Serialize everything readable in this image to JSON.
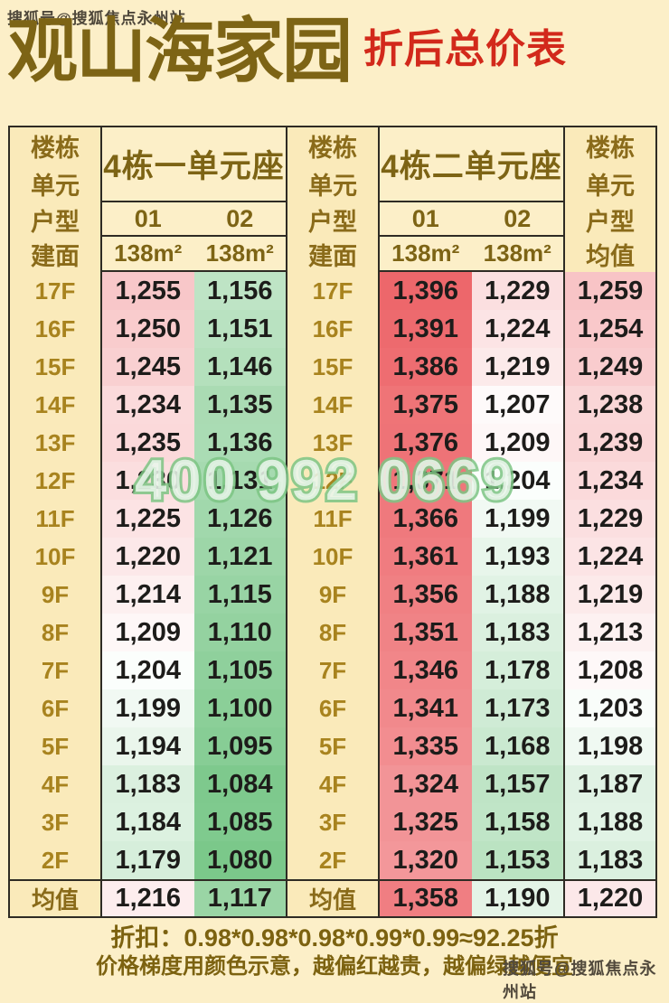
{
  "header": {
    "title": "观山海家园",
    "subtitle": "折后总价表"
  },
  "watermarks": {
    "top": "搜狐号@搜狐焦点永州站",
    "bottom": "搜狐号@搜狐焦点永州站",
    "phone": "400 992 0669"
  },
  "table": {
    "label_columns": {
      "left": [
        "楼栋",
        "单元",
        "户型",
        "建面"
      ],
      "middle": [
        "楼栋",
        "单元",
        "户型",
        "建面"
      ],
      "right": [
        "楼栋",
        "单元",
        "户型",
        "均值"
      ]
    },
    "blocks": [
      {
        "title": "4栋一单元座",
        "units": [
          "01",
          "02"
        ],
        "areas": [
          "138m²",
          "138m²"
        ]
      },
      {
        "title": "4栋二单元座",
        "units": [
          "01",
          "02"
        ],
        "areas": [
          "138m²",
          "138m²"
        ]
      }
    ],
    "floors": [
      "17F",
      "16F",
      "15F",
      "14F",
      "13F",
      "12F",
      "11F",
      "10F",
      "9F",
      "8F",
      "7F",
      "6F",
      "5F",
      "4F",
      "3F",
      "2F"
    ],
    "avg_label": "均值",
    "rows": [
      {
        "floor": "17F",
        "values": [
          1255,
          1156,
          1396,
          1229,
          1259
        ]
      },
      {
        "floor": "16F",
        "values": [
          1250,
          1151,
          1391,
          1224,
          1254
        ]
      },
      {
        "floor": "15F",
        "values": [
          1245,
          1146,
          1386,
          1219,
          1249
        ]
      },
      {
        "floor": "14F",
        "values": [
          1234,
          1135,
          1375,
          1207,
          1238
        ]
      },
      {
        "floor": "13F",
        "values": [
          1235,
          1136,
          1376,
          1209,
          1239
        ]
      },
      {
        "floor": "12F",
        "values": [
          1230,
          1131,
          1371,
          1204,
          1234
        ]
      },
      {
        "floor": "11F",
        "values": [
          1225,
          1126,
          1366,
          1199,
          1229
        ]
      },
      {
        "floor": "10F",
        "values": [
          1220,
          1121,
          1361,
          1193,
          1224
        ]
      },
      {
        "floor": "9F",
        "values": [
          1214,
          1115,
          1356,
          1188,
          1219
        ]
      },
      {
        "floor": "8F",
        "values": [
          1209,
          1110,
          1351,
          1183,
          1213
        ]
      },
      {
        "floor": "7F",
        "values": [
          1204,
          1105,
          1346,
          1178,
          1208
        ]
      },
      {
        "floor": "6F",
        "values": [
          1199,
          1100,
          1341,
          1173,
          1203
        ]
      },
      {
        "floor": "5F",
        "values": [
          1194,
          1095,
          1335,
          1168,
          1198
        ]
      },
      {
        "floor": "4F",
        "values": [
          1183,
          1084,
          1324,
          1157,
          1187
        ]
      },
      {
        "floor": "3F",
        "values": [
          1184,
          1085,
          1325,
          1158,
          1188
        ]
      },
      {
        "floor": "2F",
        "values": [
          1179,
          1080,
          1320,
          1153,
          1183
        ]
      }
    ],
    "avg_row": {
      "label": "均值",
      "values": [
        1216,
        1117,
        1358,
        1190,
        1220
      ]
    }
  },
  "footer": {
    "line1": "折扣：0.98*0.98*0.98*0.99*0.99≈92.25折",
    "line2": "价格梯度用颜色示意，越偏红越贵，越偏绿越便宜"
  },
  "colors": {
    "page_bg": "#fcefc8",
    "cell_cream": "#faeaba",
    "border": "#2e2b24",
    "title_gold": "#7d6415",
    "floor_gold": "#a8831e",
    "subtitle_red": "#d2291b",
    "heat_red_max": "#ed676b",
    "heat_green_max": "#7bc88a",
    "heat_mid": "#ffffff",
    "scale_mid_value": 1205,
    "scale_max_value": 1396,
    "scale_min_value": 1080
  },
  "chart_data": {
    "type": "heatmap",
    "title": "观山海家园 折后总价表",
    "columns": [
      "4栋一单元座 01 138m²",
      "4栋一单元座 02 138m²",
      "4栋二单元座 01 138m²",
      "4栋二单元座 02 138m²",
      "均值"
    ],
    "rows": [
      "17F",
      "16F",
      "15F",
      "14F",
      "13F",
      "12F",
      "11F",
      "10F",
      "9F",
      "8F",
      "7F",
      "6F",
      "5F",
      "4F",
      "3F",
      "2F",
      "均值"
    ],
    "values": [
      [
        1255,
        1156,
        1396,
        1229,
        1259
      ],
      [
        1250,
        1151,
        1391,
        1224,
        1254
      ],
      [
        1245,
        1146,
        1386,
        1219,
        1249
      ],
      [
        1234,
        1135,
        1375,
        1207,
        1238
      ],
      [
        1235,
        1136,
        1376,
        1209,
        1239
      ],
      [
        1230,
        1131,
        1371,
        1204,
        1234
      ],
      [
        1225,
        1126,
        1366,
        1199,
        1229
      ],
      [
        1220,
        1121,
        1361,
        1193,
        1224
      ],
      [
        1214,
        1115,
        1356,
        1188,
        1219
      ],
      [
        1209,
        1110,
        1351,
        1183,
        1213
      ],
      [
        1204,
        1105,
        1346,
        1178,
        1208
      ],
      [
        1199,
        1100,
        1341,
        1173,
        1203
      ],
      [
        1194,
        1095,
        1335,
        1168,
        1198
      ],
      [
        1183,
        1084,
        1324,
        1157,
        1187
      ],
      [
        1184,
        1085,
        1325,
        1158,
        1188
      ],
      [
        1179,
        1080,
        1320,
        1153,
        1183
      ],
      [
        1216,
        1117,
        1358,
        1190,
        1220
      ]
    ],
    "value_range": [
      1080,
      1396
    ],
    "legend": "越偏红越贵，越偏绿越便宜",
    "discount_formula": "0.98*0.98*0.98*0.99*0.99≈92.25折"
  }
}
